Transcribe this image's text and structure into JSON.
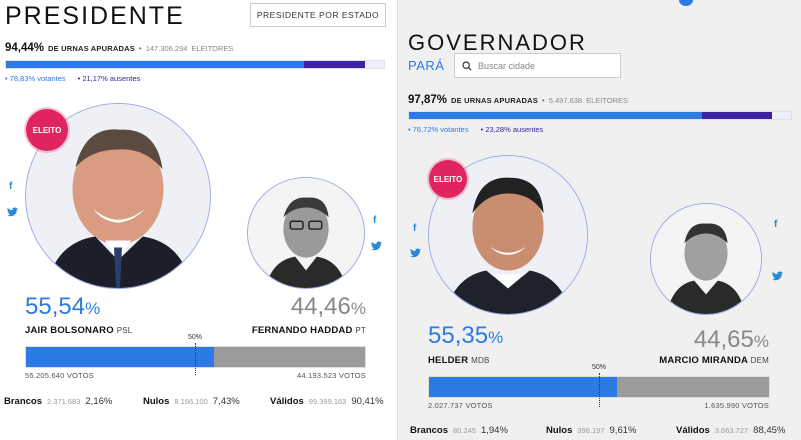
{
  "president": {
    "title": "PRESIDENTE",
    "state_button": "PRESIDENTE POR ESTADO",
    "urns": {
      "pct": "94,44%",
      "label": "DE URNAS APURADAS",
      "count": "147.306.294",
      "count_label": "ELEITORES"
    },
    "turnout": {
      "voters_pct": "78,83%",
      "voters_label": "votantes",
      "absent_pct": "21,17%",
      "absent_label": "ausentes",
      "voters_fraction": 0.7883
    },
    "winner_badge": "ELEITO",
    "candidates": [
      {
        "pct": "55,54",
        "pct_sign": "%",
        "name": "JAIR BOLSONARO",
        "party": "PSL",
        "votes": "55.205.640 VOTOS",
        "share": 0.5554
      },
      {
        "pct": "44,46",
        "pct_sign": "%",
        "name": "FERNANDO HADDAD",
        "party": "PT",
        "votes": "44.193.523 VOTOS",
        "share": 0.4446
      }
    ],
    "half_label": "50%",
    "stats": {
      "brancos": {
        "label": "Brancos",
        "n": "2.371.683",
        "p": "2,16%"
      },
      "nulos": {
        "label": "Nulos",
        "n": "8.166.100",
        "p": "7,43%"
      },
      "validos": {
        "label": "Válidos",
        "n": "99.399.163",
        "p": "90,41%"
      }
    }
  },
  "governor": {
    "title": "GOVERNADOR",
    "state": "PARÁ",
    "search_placeholder": "Buscar cidade",
    "urns": {
      "pct": "97,87%",
      "label": "DE URNAS APURADAS",
      "count": "5.497.638",
      "count_label": "ELEITORES"
    },
    "turnout": {
      "voters_pct": "76,72%",
      "voters_label": "votantes",
      "absent_pct": "23,28%",
      "absent_label": "ausentes",
      "voters_fraction": 0.7672
    },
    "winner_badge": "ELEITO",
    "candidates": [
      {
        "pct": "55,35",
        "pct_sign": "%",
        "name": "HELDER",
        "party": "MDB",
        "votes": "2.027.737 VOTOS",
        "share": 0.5535
      },
      {
        "pct": "44,65",
        "pct_sign": "%",
        "name": "MARCIO MIRANDA",
        "party": "DEM",
        "votes": "1.635.990 VOTOS",
        "share": 0.4465
      }
    ],
    "half_label": "50%",
    "stats": {
      "brancos": {
        "label": "Brancos",
        "n": "80.245",
        "p": "1,94%"
      },
      "nulos": {
        "label": "Nulos",
        "n": "398.197",
        "p": "9,61%"
      },
      "validos": {
        "label": "Válidos",
        "n": "3.663.727",
        "p": "88,45%"
      }
    }
  },
  "social": {
    "facebook_glyph": "f"
  },
  "colors": {
    "accent": "#2c7be5",
    "purple": "#3d22a3",
    "gray": "#9b9b9b",
    "badge": "#e0245e"
  }
}
